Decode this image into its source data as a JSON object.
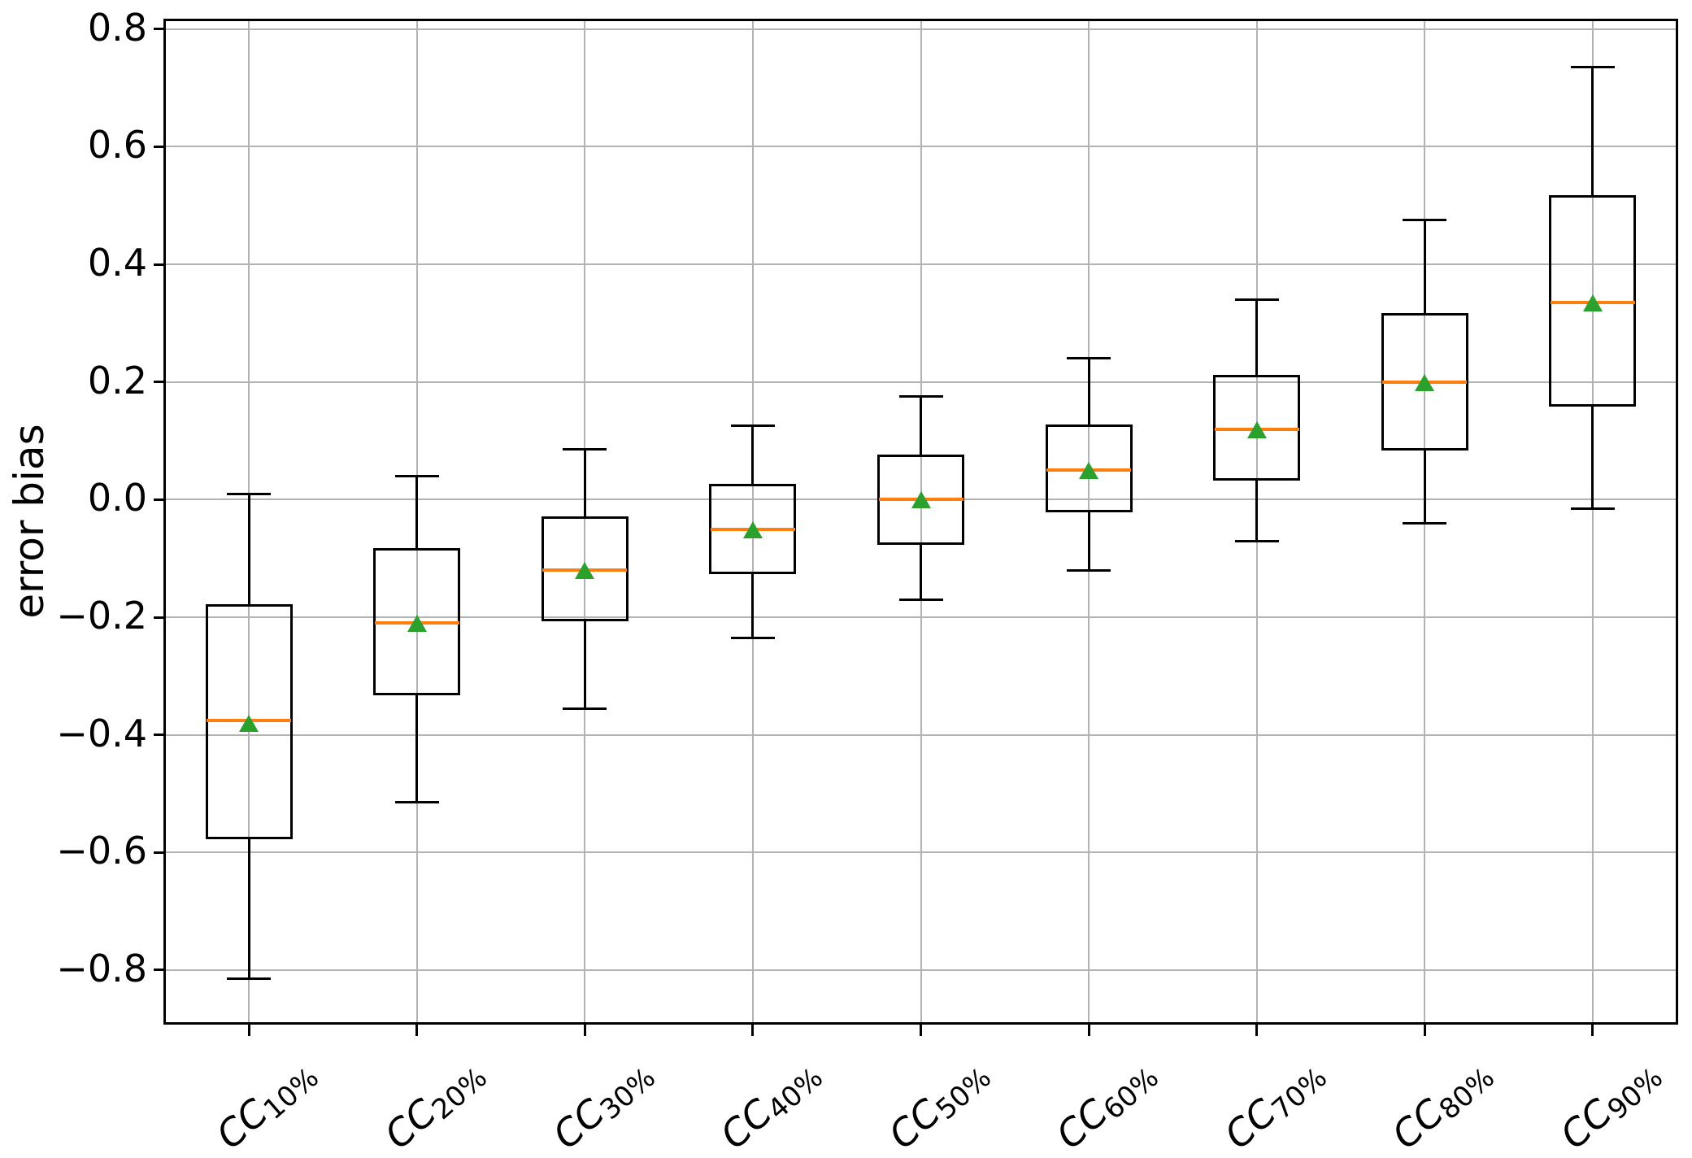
{
  "figure": {
    "ylabel": "error bias",
    "background": "#ffffff"
  },
  "chart_data": {
    "type": "boxplot",
    "title": "",
    "xlabel": "",
    "ylabel": "error bias",
    "ylim": [
      -0.89,
      0.815
    ],
    "grid": true,
    "legend": "none",
    "colors": {
      "box_line": "#000000",
      "whisker_line": "#000000",
      "median_line": "#ff7f0e",
      "mean_marker": "#2ca02c",
      "grid_line": "#b3b3b3",
      "spine": "#000000",
      "text": "#000000"
    },
    "yticks": [
      {
        "value": 0.8,
        "label": "0.8"
      },
      {
        "value": 0.6,
        "label": "0.6"
      },
      {
        "value": 0.4,
        "label": "0.4"
      },
      {
        "value": 0.2,
        "label": "0.2"
      },
      {
        "value": 0.0,
        "label": "0.0"
      },
      {
        "value": -0.2,
        "label": "−0.2"
      },
      {
        "value": -0.4,
        "label": "−0.4"
      },
      {
        "value": -0.6,
        "label": "−0.6"
      },
      {
        "value": -0.8,
        "label": "−0.8"
      }
    ],
    "categories": [
      {
        "label": "CC10%",
        "main": "CC",
        "sub": "10%"
      },
      {
        "label": "CC20%",
        "main": "CC",
        "sub": "20%"
      },
      {
        "label": "CC30%",
        "main": "CC",
        "sub": "30%"
      },
      {
        "label": "CC40%",
        "main": "CC",
        "sub": "40%"
      },
      {
        "label": "CC50%",
        "main": "CC",
        "sub": "50%"
      },
      {
        "label": "CC60%",
        "main": "CC",
        "sub": "60%"
      },
      {
        "label": "CC70%",
        "main": "CC",
        "sub": "70%"
      },
      {
        "label": "CC80%",
        "main": "CC",
        "sub": "80%"
      },
      {
        "label": "CC90%",
        "main": "CC",
        "sub": "90%"
      }
    ],
    "boxes": [
      {
        "category": "CC10%",
        "whisker_low": -0.815,
        "q1": -0.575,
        "median": -0.375,
        "mean": -0.38,
        "q3": -0.18,
        "whisker_high": 0.01
      },
      {
        "category": "CC20%",
        "whisker_low": -0.515,
        "q1": -0.33,
        "median": -0.21,
        "mean": -0.21,
        "q3": -0.085,
        "whisker_high": 0.04
      },
      {
        "category": "CC30%",
        "whisker_low": -0.355,
        "q1": -0.205,
        "median": -0.12,
        "mean": -0.12,
        "q3": -0.03,
        "whisker_high": 0.085
      },
      {
        "category": "CC40%",
        "whisker_low": -0.235,
        "q1": -0.125,
        "median": -0.05,
        "mean": -0.05,
        "q3": 0.025,
        "whisker_high": 0.125
      },
      {
        "category": "CC50%",
        "whisker_low": -0.17,
        "q1": -0.075,
        "median": 0.0,
        "mean": 0.0,
        "q3": 0.075,
        "whisker_high": 0.175
      },
      {
        "category": "CC60%",
        "whisker_low": -0.12,
        "q1": -0.02,
        "median": 0.05,
        "mean": 0.05,
        "q3": 0.125,
        "whisker_high": 0.24
      },
      {
        "category": "CC70%",
        "whisker_low": -0.07,
        "q1": 0.035,
        "median": 0.12,
        "mean": 0.12,
        "q3": 0.21,
        "whisker_high": 0.34
      },
      {
        "category": "CC80%",
        "whisker_low": -0.04,
        "q1": 0.085,
        "median": 0.2,
        "mean": 0.2,
        "q3": 0.315,
        "whisker_high": 0.475
      },
      {
        "category": "CC90%",
        "whisker_low": -0.015,
        "q1": 0.16,
        "median": 0.335,
        "mean": 0.335,
        "q3": 0.515,
        "whisker_high": 0.735
      }
    ]
  }
}
